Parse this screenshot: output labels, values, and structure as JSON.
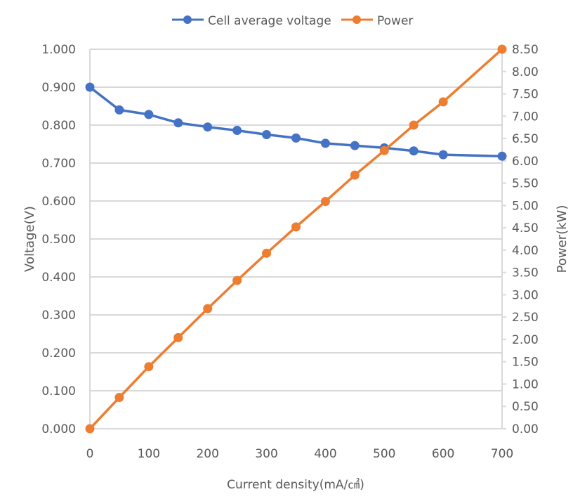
{
  "chart_data": {
    "type": "line",
    "title": "",
    "legend_position": "top",
    "grid": true,
    "x": [
      0,
      50,
      100,
      150,
      200,
      250,
      300,
      350,
      400,
      450,
      500,
      550,
      600,
      700
    ],
    "xlabel": "Current density(mA/㎠)",
    "xlim": [
      0,
      700
    ],
    "xticks": [
      "0",
      "100",
      "200",
      "300",
      "400",
      "500",
      "600",
      "700"
    ],
    "y_left": {
      "label": "Voltage(V)",
      "lim": [
        0,
        1.0
      ],
      "ticks": [
        "0.000",
        "0.100",
        "0.200",
        "0.300",
        "0.400",
        "0.500",
        "0.600",
        "0.700",
        "0.800",
        "0.900",
        "1.000"
      ]
    },
    "y_right": {
      "label": "Power(kW)",
      "lim": [
        0,
        8.5
      ],
      "ticks": [
        "0.00",
        "0.50",
        "1.00",
        "1.50",
        "2.00",
        "2.50",
        "3.00",
        "3.50",
        "4.00",
        "4.50",
        "5.00",
        "5.50",
        "6.00",
        "6.50",
        "7.00",
        "7.50",
        "8.00",
        "8.50"
      ]
    },
    "series": [
      {
        "name": "Cell average voltage",
        "axis": "left",
        "color": "#4472C4",
        "values": [
          0.9,
          0.84,
          0.828,
          0.806,
          0.795,
          0.786,
          0.775,
          0.766,
          0.752,
          0.746,
          0.74,
          0.732,
          0.722,
          0.718
        ]
      },
      {
        "name": "Power",
        "axis": "right",
        "color": "#ED7D31",
        "values": [
          0.0,
          0.7,
          1.39,
          2.04,
          2.69,
          3.32,
          3.93,
          4.52,
          5.09,
          5.68,
          6.23,
          6.8,
          7.32,
          8.5
        ]
      }
    ]
  }
}
